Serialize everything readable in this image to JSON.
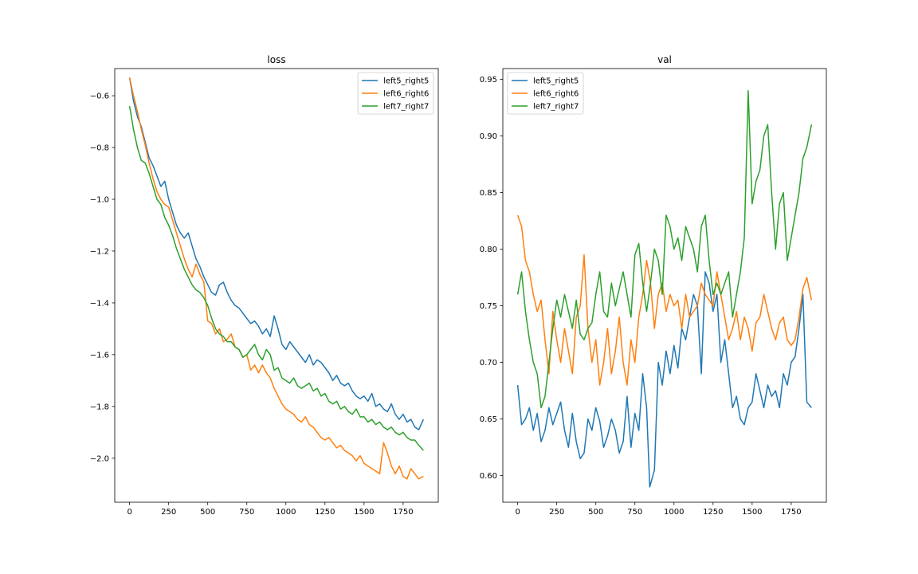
{
  "chart_data": [
    {
      "type": "line",
      "title": "loss",
      "xlabel": "",
      "ylabel": "",
      "xlim": [
        -95,
        1975
      ],
      "ylim": [
        -2.17,
        -0.495
      ],
      "xticks": [
        0,
        250,
        500,
        750,
        1000,
        1250,
        1500,
        1750
      ],
      "yticks": [
        -2.0,
        -1.8,
        -1.6,
        -1.4,
        -1.2,
        -1.0,
        -0.8,
        -0.6
      ],
      "xtick_labels": [
        "0",
        "250",
        "500",
        "750",
        "1000",
        "1250",
        "1500",
        "1750"
      ],
      "ytick_labels": [
        "−2.0",
        "−1.8",
        "−1.6",
        "−1.4",
        "−1.2",
        "−1.0",
        "−0.8",
        "−0.6"
      ],
      "grid": false,
      "legend": "upper right",
      "series": [
        {
          "name": "left5_right5",
          "color": "#1f77b4",
          "x": [
            0,
            25,
            50,
            75,
            100,
            125,
            150,
            175,
            200,
            225,
            250,
            275,
            300,
            325,
            350,
            375,
            400,
            425,
            450,
            475,
            500,
            525,
            550,
            575,
            600,
            625,
            650,
            675,
            700,
            725,
            750,
            775,
            800,
            825,
            850,
            875,
            900,
            925,
            950,
            975,
            1000,
            1025,
            1050,
            1075,
            1100,
            1125,
            1150,
            1175,
            1200,
            1225,
            1250,
            1275,
            1300,
            1325,
            1350,
            1375,
            1400,
            1425,
            1450,
            1475,
            1500,
            1525,
            1550,
            1575,
            1600,
            1625,
            1650,
            1675,
            1700,
            1725,
            1750,
            1775,
            1800,
            1825,
            1850,
            1880
          ],
          "y": [
            -0.53,
            -0.62,
            -0.68,
            -0.72,
            -0.78,
            -0.84,
            -0.87,
            -0.91,
            -0.95,
            -0.93,
            -1.0,
            -1.05,
            -1.1,
            -1.13,
            -1.15,
            -1.13,
            -1.18,
            -1.23,
            -1.26,
            -1.3,
            -1.33,
            -1.36,
            -1.37,
            -1.33,
            -1.32,
            -1.36,
            -1.39,
            -1.41,
            -1.42,
            -1.44,
            -1.46,
            -1.48,
            -1.47,
            -1.49,
            -1.52,
            -1.5,
            -1.53,
            -1.45,
            -1.5,
            -1.56,
            -1.58,
            -1.55,
            -1.57,
            -1.59,
            -1.61,
            -1.63,
            -1.6,
            -1.64,
            -1.62,
            -1.63,
            -1.65,
            -1.67,
            -1.7,
            -1.68,
            -1.71,
            -1.72,
            -1.71,
            -1.74,
            -1.76,
            -1.77,
            -1.76,
            -1.78,
            -1.75,
            -1.8,
            -1.79,
            -1.81,
            -1.82,
            -1.79,
            -1.83,
            -1.85,
            -1.83,
            -1.86,
            -1.85,
            -1.88,
            -1.89,
            -1.85
          ]
        },
        {
          "name": "left6_right6",
          "color": "#ff7f0e",
          "x": [
            0,
            25,
            50,
            75,
            100,
            125,
            150,
            175,
            200,
            225,
            250,
            275,
            300,
            325,
            350,
            375,
            400,
            425,
            450,
            475,
            500,
            525,
            550,
            575,
            600,
            625,
            650,
            675,
            700,
            725,
            750,
            775,
            800,
            825,
            850,
            875,
            900,
            925,
            950,
            975,
            1000,
            1025,
            1050,
            1075,
            1100,
            1125,
            1150,
            1175,
            1200,
            1225,
            1250,
            1275,
            1300,
            1325,
            1350,
            1375,
            1400,
            1425,
            1450,
            1475,
            1500,
            1525,
            1550,
            1575,
            1600,
            1625,
            1650,
            1675,
            1700,
            1725,
            1750,
            1775,
            1800,
            1825,
            1850,
            1880
          ],
          "y": [
            -0.53,
            -0.6,
            -0.66,
            -0.73,
            -0.79,
            -0.86,
            -0.92,
            -0.97,
            -1.0,
            -1.02,
            -1.03,
            -1.08,
            -1.13,
            -1.18,
            -1.23,
            -1.27,
            -1.3,
            -1.25,
            -1.29,
            -1.32,
            -1.47,
            -1.48,
            -1.52,
            -1.5,
            -1.55,
            -1.54,
            -1.52,
            -1.57,
            -1.58,
            -1.61,
            -1.6,
            -1.66,
            -1.64,
            -1.67,
            -1.64,
            -1.67,
            -1.69,
            -1.73,
            -1.76,
            -1.79,
            -1.81,
            -1.82,
            -1.83,
            -1.85,
            -1.86,
            -1.84,
            -1.87,
            -1.88,
            -1.9,
            -1.92,
            -1.93,
            -1.92,
            -1.94,
            -1.96,
            -1.95,
            -1.97,
            -1.98,
            -1.99,
            -2.01,
            -1.99,
            -2.02,
            -2.03,
            -2.04,
            -2.05,
            -2.06,
            -1.94,
            -1.98,
            -2.03,
            -2.06,
            -2.03,
            -2.07,
            -2.08,
            -2.04,
            -2.06,
            -2.08,
            -2.07
          ]
        },
        {
          "name": "left7_right7",
          "color": "#2ca02c",
          "x": [
            0,
            25,
            50,
            75,
            100,
            125,
            150,
            175,
            200,
            225,
            250,
            275,
            300,
            325,
            350,
            375,
            400,
            425,
            450,
            475,
            500,
            525,
            550,
            575,
            600,
            625,
            650,
            675,
            700,
            725,
            750,
            775,
            800,
            825,
            850,
            875,
            900,
            925,
            950,
            975,
            1000,
            1025,
            1050,
            1075,
            1100,
            1125,
            1150,
            1175,
            1200,
            1225,
            1250,
            1275,
            1300,
            1325,
            1350,
            1375,
            1400,
            1425,
            1450,
            1475,
            1500,
            1525,
            1550,
            1575,
            1600,
            1625,
            1650,
            1675,
            1700,
            1725,
            1750,
            1775,
            1800,
            1825,
            1850,
            1880
          ],
          "y": [
            -0.64,
            -0.73,
            -0.8,
            -0.85,
            -0.86,
            -0.9,
            -0.95,
            -1.0,
            -1.02,
            -1.07,
            -1.1,
            -1.14,
            -1.19,
            -1.23,
            -1.27,
            -1.3,
            -1.33,
            -1.35,
            -1.36,
            -1.38,
            -1.41,
            -1.46,
            -1.5,
            -1.52,
            -1.53,
            -1.55,
            -1.55,
            -1.57,
            -1.58,
            -1.61,
            -1.6,
            -1.58,
            -1.56,
            -1.6,
            -1.62,
            -1.58,
            -1.6,
            -1.66,
            -1.65,
            -1.69,
            -1.7,
            -1.71,
            -1.69,
            -1.72,
            -1.73,
            -1.72,
            -1.71,
            -1.74,
            -1.73,
            -1.76,
            -1.75,
            -1.78,
            -1.79,
            -1.78,
            -1.81,
            -1.8,
            -1.82,
            -1.83,
            -1.81,
            -1.84,
            -1.84,
            -1.86,
            -1.85,
            -1.87,
            -1.86,
            -1.88,
            -1.89,
            -1.88,
            -1.9,
            -1.91,
            -1.9,
            -1.92,
            -1.93,
            -1.93,
            -1.95,
            -1.97
          ]
        }
      ]
    },
    {
      "type": "line",
      "title": "val",
      "xlabel": "",
      "ylabel": "",
      "xlim": [
        -95,
        1975
      ],
      "ylim": [
        0.5765,
        0.9595
      ],
      "xticks": [
        0,
        250,
        500,
        750,
        1000,
        1250,
        1500,
        1750
      ],
      "yticks": [
        0.6,
        0.65,
        0.7,
        0.75,
        0.8,
        0.85,
        0.9,
        0.95
      ],
      "xtick_labels": [
        "0",
        "250",
        "500",
        "750",
        "1000",
        "1250",
        "1500",
        "1750"
      ],
      "ytick_labels": [
        "0.60",
        "0.65",
        "0.70",
        "0.75",
        "0.80",
        "0.85",
        "0.90",
        "0.95"
      ],
      "grid": false,
      "legend": "upper left",
      "series": [
        {
          "name": "left5_right5",
          "color": "#1f77b4",
          "x": [
            0,
            25,
            50,
            75,
            100,
            125,
            150,
            175,
            200,
            225,
            250,
            275,
            300,
            325,
            350,
            375,
            400,
            425,
            450,
            475,
            500,
            525,
            550,
            575,
            600,
            625,
            650,
            675,
            700,
            725,
            750,
            775,
            800,
            825,
            845,
            875,
            900,
            925,
            950,
            975,
            1000,
            1025,
            1050,
            1075,
            1100,
            1125,
            1150,
            1175,
            1200,
            1225,
            1250,
            1275,
            1300,
            1325,
            1350,
            1375,
            1400,
            1425,
            1450,
            1475,
            1500,
            1525,
            1550,
            1575,
            1600,
            1625,
            1650,
            1675,
            1700,
            1725,
            1750,
            1775,
            1800,
            1825,
            1850,
            1880
          ],
          "y": [
            0.68,
            0.645,
            0.65,
            0.66,
            0.64,
            0.655,
            0.63,
            0.64,
            0.66,
            0.645,
            0.655,
            0.665,
            0.64,
            0.625,
            0.655,
            0.63,
            0.615,
            0.62,
            0.65,
            0.64,
            0.66,
            0.648,
            0.625,
            0.635,
            0.65,
            0.64,
            0.62,
            0.63,
            0.67,
            0.625,
            0.655,
            0.64,
            0.69,
            0.66,
            0.59,
            0.605,
            0.7,
            0.68,
            0.71,
            0.69,
            0.715,
            0.695,
            0.73,
            0.72,
            0.74,
            0.76,
            0.75,
            0.69,
            0.78,
            0.77,
            0.745,
            0.76,
            0.7,
            0.72,
            0.69,
            0.66,
            0.67,
            0.65,
            0.645,
            0.66,
            0.665,
            0.69,
            0.675,
            0.66,
            0.68,
            0.67,
            0.675,
            0.66,
            0.69,
            0.68,
            0.7,
            0.705,
            0.73,
            0.76,
            0.665,
            0.66
          ]
        },
        {
          "name": "left6_right6",
          "color": "#ff7f0e",
          "x": [
            0,
            25,
            50,
            75,
            100,
            125,
            150,
            175,
            200,
            225,
            250,
            275,
            300,
            325,
            350,
            375,
            400,
            425,
            450,
            475,
            500,
            525,
            550,
            575,
            600,
            625,
            650,
            675,
            700,
            725,
            750,
            775,
            800,
            825,
            850,
            875,
            900,
            925,
            950,
            975,
            1000,
            1025,
            1050,
            1075,
            1100,
            1125,
            1150,
            1175,
            1200,
            1225,
            1250,
            1275,
            1300,
            1325,
            1350,
            1375,
            1400,
            1425,
            1450,
            1475,
            1500,
            1525,
            1550,
            1575,
            1600,
            1625,
            1650,
            1675,
            1700,
            1725,
            1750,
            1775,
            1800,
            1825,
            1850,
            1880
          ],
          "y": [
            0.83,
            0.82,
            0.79,
            0.78,
            0.76,
            0.745,
            0.755,
            0.72,
            0.69,
            0.745,
            0.72,
            0.7,
            0.73,
            0.71,
            0.69,
            0.74,
            0.75,
            0.795,
            0.73,
            0.7,
            0.72,
            0.68,
            0.7,
            0.73,
            0.69,
            0.71,
            0.74,
            0.7,
            0.68,
            0.72,
            0.7,
            0.74,
            0.76,
            0.79,
            0.77,
            0.73,
            0.76,
            0.77,
            0.745,
            0.76,
            0.75,
            0.755,
            0.73,
            0.76,
            0.74,
            0.745,
            0.75,
            0.77,
            0.76,
            0.755,
            0.75,
            0.78,
            0.76,
            0.74,
            0.72,
            0.73,
            0.745,
            0.72,
            0.74,
            0.73,
            0.71,
            0.735,
            0.74,
            0.76,
            0.745,
            0.73,
            0.72,
            0.735,
            0.74,
            0.72,
            0.715,
            0.72,
            0.74,
            0.765,
            0.775,
            0.755
          ]
        },
        {
          "name": "left7_right7",
          "color": "#2ca02c",
          "x": [
            0,
            25,
            50,
            75,
            100,
            125,
            150,
            175,
            200,
            225,
            250,
            275,
            300,
            325,
            350,
            375,
            400,
            425,
            450,
            475,
            500,
            525,
            550,
            575,
            600,
            625,
            650,
            675,
            700,
            725,
            750,
            775,
            800,
            825,
            850,
            875,
            900,
            925,
            950,
            975,
            1000,
            1025,
            1050,
            1075,
            1100,
            1125,
            1150,
            1175,
            1200,
            1225,
            1250,
            1275,
            1300,
            1325,
            1350,
            1375,
            1400,
            1425,
            1450,
            1475,
            1500,
            1525,
            1550,
            1575,
            1600,
            1625,
            1650,
            1675,
            1700,
            1725,
            1750,
            1775,
            1800,
            1825,
            1850,
            1880
          ],
          "y": [
            0.76,
            0.78,
            0.745,
            0.72,
            0.7,
            0.69,
            0.66,
            0.67,
            0.7,
            0.73,
            0.755,
            0.74,
            0.76,
            0.745,
            0.73,
            0.755,
            0.725,
            0.72,
            0.73,
            0.735,
            0.76,
            0.78,
            0.745,
            0.74,
            0.77,
            0.75,
            0.765,
            0.78,
            0.76,
            0.74,
            0.795,
            0.805,
            0.77,
            0.745,
            0.77,
            0.8,
            0.79,
            0.76,
            0.83,
            0.82,
            0.8,
            0.81,
            0.79,
            0.82,
            0.81,
            0.8,
            0.78,
            0.82,
            0.83,
            0.79,
            0.76,
            0.77,
            0.76,
            0.77,
            0.78,
            0.74,
            0.76,
            0.78,
            0.81,
            0.94,
            0.84,
            0.86,
            0.87,
            0.9,
            0.91,
            0.85,
            0.8,
            0.84,
            0.85,
            0.79,
            0.81,
            0.83,
            0.85,
            0.88,
            0.89,
            0.91
          ]
        }
      ]
    }
  ]
}
